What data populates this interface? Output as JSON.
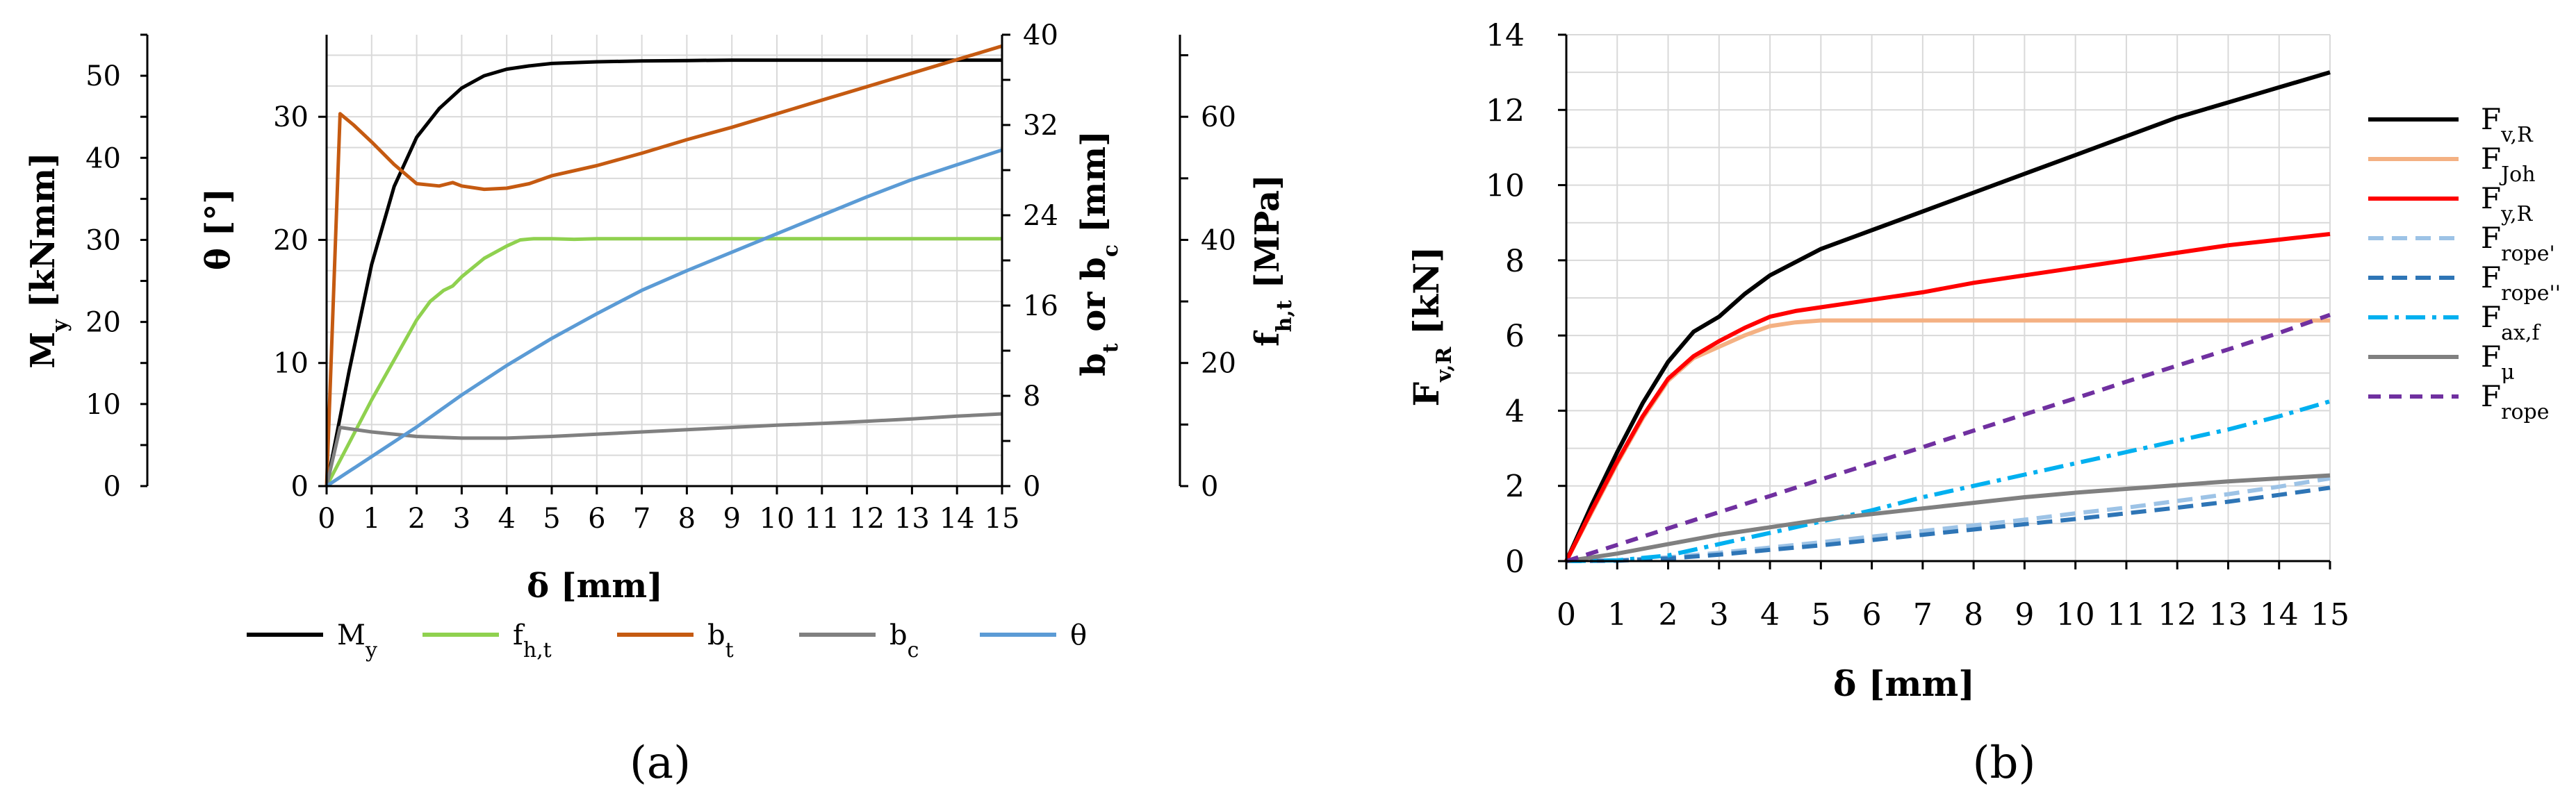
{
  "chart_data": [
    {
      "type": "line",
      "panel_label": "(a)",
      "xlabel": "δ [mm]",
      "xlim": [
        0,
        15
      ],
      "xticks": [
        0,
        1,
        2,
        3,
        4,
        5,
        6,
        7,
        8,
        9,
        10,
        11,
        12,
        13,
        14,
        15
      ],
      "axes": [
        {
          "id": "My",
          "label_main": "M",
          "label_sub": "y",
          "label_rest": " [kNmm]",
          "lim": [
            0,
            55
          ],
          "ticks": [
            0,
            10,
            20,
            30,
            40,
            50
          ]
        },
        {
          "id": "theta",
          "label_main": "θ [°]",
          "label_sub": "",
          "label_rest": "",
          "lim": [
            0,
            36.6667
          ],
          "ticks": [
            0,
            10,
            20,
            30
          ]
        },
        {
          "id": "b",
          "label_main": "b",
          "label_sub": "t",
          "label_rest": " or b",
          "label_sub2": "c",
          "label_rest2": " [mm]",
          "lim": [
            0,
            40
          ],
          "ticks": [
            0,
            8,
            16,
            24,
            32,
            40
          ]
        },
        {
          "id": "fh",
          "label_main": "f",
          "label_sub": "h,t",
          "label_rest": " [MPa]",
          "lim": [
            0,
            73.3333
          ],
          "ticks": [
            0,
            20,
            40,
            60
          ]
        }
      ],
      "series": [
        {
          "name": "M",
          "sub": "y",
          "color": "#000000",
          "axis": "My",
          "x": [
            0,
            0.5,
            1,
            1.5,
            2,
            2.5,
            3,
            3.5,
            4,
            4.5,
            5,
            6,
            7,
            8,
            9,
            10,
            11,
            12,
            13,
            14,
            15
          ],
          "y": [
            0,
            14,
            27,
            36.5,
            42.5,
            46,
            48.5,
            50,
            50.8,
            51.2,
            51.5,
            51.7,
            51.8,
            51.85,
            51.9,
            51.9,
            51.9,
            51.9,
            51.9,
            51.9,
            51.9
          ]
        },
        {
          "name": "f",
          "sub": "h,t",
          "color": "#8fd14f",
          "axis": "fh",
          "x": [
            0,
            0.5,
            1,
            1.5,
            2,
            2.3,
            2.6,
            2.8,
            3,
            3.5,
            4,
            4.3,
            4.6,
            5,
            5.5,
            6,
            7,
            8,
            9,
            10,
            11,
            12,
            13,
            14,
            15
          ],
          "y": [
            0,
            7,
            14,
            20.5,
            27,
            30,
            31.8,
            32.5,
            34,
            37,
            39,
            40,
            40.2,
            40.2,
            40.1,
            40.2,
            40.2,
            40.2,
            40.2,
            40.2,
            40.2,
            40.2,
            40.2,
            40.2,
            40.2
          ]
        },
        {
          "name": "b",
          "sub": "t",
          "color": "#c55a11",
          "axis": "b",
          "x": [
            0,
            0.3,
            0.6,
            1,
            1.5,
            2,
            2.5,
            2.8,
            3,
            3.5,
            4,
            4.5,
            5,
            6,
            7,
            8,
            9,
            10,
            11,
            12,
            13,
            14,
            15
          ],
          "y": [
            0,
            33,
            32,
            30.5,
            28.5,
            26.8,
            26.6,
            26.9,
            26.6,
            26.3,
            26.4,
            26.8,
            27.5,
            28.4,
            29.5,
            30.7,
            31.8,
            33,
            34.2,
            35.4,
            36.6,
            37.8,
            39
          ]
        },
        {
          "name": "b",
          "sub": "c",
          "color": "#808080",
          "axis": "b",
          "x": [
            0,
            0.3,
            1,
            2,
            3,
            4,
            5,
            6,
            7,
            8,
            9,
            10,
            11,
            12,
            13,
            14,
            15
          ],
          "y": [
            0,
            5.2,
            4.8,
            4.4,
            4.25,
            4.25,
            4.4,
            4.6,
            4.8,
            5.0,
            5.2,
            5.4,
            5.55,
            5.75,
            5.95,
            6.2,
            6.4
          ]
        },
        {
          "name": "θ",
          "sub": "",
          "color": "#5b9bd5",
          "axis": "theta",
          "x": [
            0,
            1,
            2,
            3,
            4,
            5,
            6,
            7,
            8,
            9,
            10,
            11,
            12,
            13,
            14,
            15
          ],
          "y": [
            0,
            2.4,
            4.8,
            7.4,
            9.8,
            12,
            14,
            15.9,
            17.5,
            19,
            20.5,
            22,
            23.5,
            24.9,
            26.1,
            27.3
          ]
        }
      ],
      "legend": [
        "M_y",
        "f_h,t",
        "b_t",
        "b_c",
        "θ"
      ],
      "grid": true
    },
    {
      "type": "line",
      "panel_label": "(b)",
      "xlabel": "δ [mm]",
      "ylabel_main": "F",
      "ylabel_sub": "v,R",
      "ylabel_rest": "  [kN]",
      "xlim": [
        0,
        15
      ],
      "ylim": [
        0,
        14
      ],
      "xticks": [
        0,
        1,
        2,
        3,
        4,
        5,
        6,
        7,
        8,
        9,
        10,
        11,
        12,
        13,
        14,
        15
      ],
      "yticks": [
        0,
        2,
        4,
        6,
        8,
        10,
        12,
        14
      ],
      "series": [
        {
          "name": "F",
          "sub": "v,R",
          "color": "#000000",
          "dash": "",
          "x": [
            0,
            0.5,
            1,
            1.5,
            2,
            2.5,
            3,
            3.5,
            4,
            5,
            6,
            7,
            8,
            9,
            10,
            11,
            12,
            13,
            14,
            15
          ],
          "y": [
            0,
            1.5,
            2.9,
            4.2,
            5.3,
            6.1,
            6.5,
            7.1,
            7.6,
            8.3,
            8.8,
            9.3,
            9.8,
            10.3,
            10.8,
            11.3,
            11.8,
            12.2,
            12.6,
            13.0
          ]
        },
        {
          "name": "F",
          "sub": "Joh",
          "color": "#f4b183",
          "dash": "",
          "x": [
            0,
            0.5,
            1,
            1.5,
            2,
            2.5,
            3,
            3.5,
            4,
            4.5,
            5,
            6,
            7,
            8,
            9,
            10,
            11,
            12,
            13,
            14,
            15
          ],
          "y": [
            0,
            1.3,
            2.6,
            3.8,
            4.8,
            5.4,
            5.7,
            6.0,
            6.25,
            6.35,
            6.4,
            6.4,
            6.4,
            6.4,
            6.4,
            6.4,
            6.4,
            6.4,
            6.4,
            6.4,
            6.4
          ]
        },
        {
          "name": "F",
          "sub": "y,R",
          "color": "#ff0000",
          "dash": "",
          "x": [
            0,
            0.5,
            1,
            1.5,
            2,
            2.5,
            3,
            3.5,
            4,
            4.5,
            5,
            6,
            7,
            8,
            9,
            10,
            11,
            12,
            13,
            14,
            15
          ],
          "y": [
            0,
            1.35,
            2.65,
            3.85,
            4.85,
            5.45,
            5.85,
            6.2,
            6.5,
            6.65,
            6.75,
            6.95,
            7.15,
            7.4,
            7.6,
            7.8,
            8.0,
            8.2,
            8.4,
            8.55,
            8.7
          ]
        },
        {
          "name": "F",
          "sub": "rope'",
          "color": "#9dc3e6",
          "dash": "22,12",
          "x": [
            0,
            1,
            2,
            3,
            4,
            5,
            6,
            7,
            8,
            9,
            10,
            11,
            12,
            13,
            14,
            15
          ],
          "y": [
            0,
            0.02,
            0.1,
            0.22,
            0.36,
            0.5,
            0.65,
            0.8,
            0.95,
            1.1,
            1.27,
            1.42,
            1.6,
            1.78,
            1.98,
            2.2
          ]
        },
        {
          "name": "F",
          "sub": "rope''",
          "color": "#2e75b6",
          "dash": "22,12",
          "x": [
            0,
            1,
            2,
            3,
            4,
            5,
            6,
            7,
            8,
            9,
            10,
            11,
            12,
            13,
            14,
            15
          ],
          "y": [
            0,
            0.01,
            0.07,
            0.17,
            0.3,
            0.42,
            0.56,
            0.7,
            0.84,
            0.98,
            1.12,
            1.27,
            1.42,
            1.58,
            1.76,
            1.95
          ]
        },
        {
          "name": "F",
          "sub": "ax,f",
          "color": "#00b0f0",
          "dash": "28,10,6,10",
          "x": [
            0,
            1,
            2,
            3,
            4,
            5,
            6,
            7,
            8,
            9,
            10,
            11,
            12,
            13,
            14,
            15
          ],
          "y": [
            0,
            0.02,
            0.15,
            0.45,
            0.75,
            1.05,
            1.35,
            1.7,
            2.0,
            2.3,
            2.6,
            2.9,
            3.2,
            3.5,
            3.85,
            4.25
          ]
        },
        {
          "name": "F",
          "sub": "μ",
          "color": "#808080",
          "dash": "",
          "x": [
            0,
            1,
            2,
            3,
            4,
            5,
            6,
            7,
            8,
            9,
            10,
            11,
            12,
            13,
            14,
            15
          ],
          "y": [
            0,
            0.2,
            0.45,
            0.7,
            0.9,
            1.1,
            1.25,
            1.4,
            1.55,
            1.7,
            1.82,
            1.92,
            2.02,
            2.12,
            2.2,
            2.28
          ]
        },
        {
          "name": "F",
          "sub": "rope",
          "color": "#7030a0",
          "dash": "18,12",
          "x": [
            0,
            1,
            2,
            3,
            4,
            5,
            6,
            7,
            8,
            9,
            10,
            11,
            12,
            13,
            14,
            15
          ],
          "y": [
            0,
            0.43,
            0.87,
            1.3,
            1.73,
            2.17,
            2.6,
            3.03,
            3.47,
            3.9,
            4.33,
            4.77,
            5.2,
            5.63,
            6.07,
            6.55
          ]
        }
      ],
      "legend": [
        "F_v,R",
        "F_Joh",
        "F_y,R",
        "F_rope'",
        "F_rope''",
        "F_ax,f",
        "F_μ",
        "F_rope"
      ],
      "grid": true
    }
  ]
}
